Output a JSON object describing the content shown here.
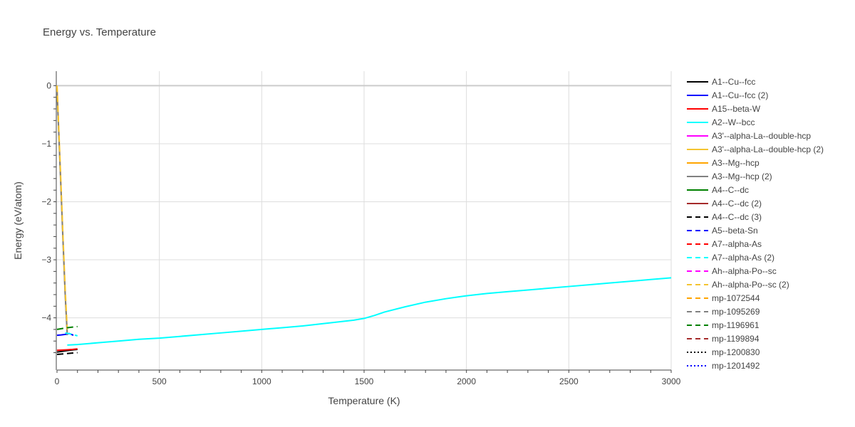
{
  "chart_data": {
    "type": "line",
    "title": "Energy vs. Temperature",
    "xlabel": "Temperature (K)",
    "ylabel": "Energy (eV/atom)",
    "xlim": [
      0,
      3000
    ],
    "ylim": [
      -4.9,
      0.25
    ],
    "xticks": [
      0,
      500,
      1000,
      1500,
      2000,
      2500,
      3000
    ],
    "yticks": [
      0,
      -1,
      -2,
      -3,
      -4
    ],
    "ytick_labels": [
      "0",
      "−1",
      "−2",
      "−3",
      "−4"
    ],
    "grid": true,
    "legend_position": "right",
    "series": [
      {
        "name": "A1--Cu--fcc",
        "color": "#000000",
        "dash": "solid",
        "x": [
          0,
          10,
          30,
          50,
          70,
          100
        ],
        "y": [
          -4.59,
          -4.585,
          -4.575,
          -4.565,
          -4.555,
          -4.545
        ]
      },
      {
        "name": "A1--Cu--fcc (2)",
        "color": "#0000ff",
        "dash": "solid",
        "x": [
          0,
          20,
          40,
          60,
          80
        ],
        "y": [
          -4.3,
          -4.295,
          -4.285,
          -4.27,
          -4.3
        ]
      },
      {
        "name": "A15--beta-W",
        "color": "#ff0000",
        "dash": "solid",
        "x": [
          0,
          25,
          50,
          75,
          100
        ],
        "y": [
          -4.56,
          -4.555,
          -4.55,
          -4.545,
          -4.535
        ]
      },
      {
        "name": "A2--W--bcc",
        "color": "#00ffff",
        "dash": "solid",
        "x": [
          50,
          100,
          200,
          300,
          400,
          500,
          600,
          700,
          800,
          900,
          1000,
          1100,
          1200,
          1300,
          1400,
          1450,
          1500,
          1550,
          1600,
          1700,
          1800,
          1900,
          2000,
          2100,
          2200,
          2300,
          2400,
          2500,
          2600,
          2700,
          2800,
          2900,
          3000
        ],
        "y": [
          -4.47,
          -4.46,
          -4.43,
          -4.4,
          -4.37,
          -4.35,
          -4.32,
          -4.29,
          -4.26,
          -4.23,
          -4.2,
          -4.17,
          -4.14,
          -4.1,
          -4.06,
          -4.04,
          -4.01,
          -3.96,
          -3.9,
          -3.81,
          -3.73,
          -3.67,
          -3.62,
          -3.58,
          -3.55,
          -3.52,
          -3.49,
          -3.46,
          -3.43,
          -3.4,
          -3.37,
          -3.34,
          -3.31
        ]
      },
      {
        "name": "A3'--alpha-La--double-hcp",
        "color": "#ff00ff",
        "dash": "solid",
        "x": [],
        "y": []
      },
      {
        "name": "A3'--alpha-La--double-hcp (2)",
        "color": "#f4c430",
        "dash": "solid",
        "x": [],
        "y": []
      },
      {
        "name": "A3--Mg--hcp",
        "color": "#ffa500",
        "dash": "solid",
        "x": [
          0,
          10,
          20,
          30,
          40,
          50
        ],
        "y": [
          0.0,
          -0.9,
          -1.8,
          -2.7,
          -3.6,
          -4.25
        ]
      },
      {
        "name": "A3--Mg--hcp (2)",
        "color": "#808080",
        "dash": "solid",
        "x": [
          0,
          10,
          20,
          30,
          40,
          50
        ],
        "y": [
          -0.1,
          -0.95,
          -1.85,
          -2.75,
          -3.6,
          -4.3
        ]
      },
      {
        "name": "A4--C--dc",
        "color": "#008000",
        "dash": "solid",
        "x": [],
        "y": []
      },
      {
        "name": "A4--C--dc (2)",
        "color": "#a52a2a",
        "dash": "solid",
        "x": [],
        "y": []
      },
      {
        "name": "A4--C--dc (3)",
        "color": "#000000",
        "dash": "dash",
        "x": [
          0,
          50,
          100
        ],
        "y": [
          -4.63,
          -4.615,
          -4.6
        ]
      },
      {
        "name": "A5--beta-Sn",
        "color": "#0000ff",
        "dash": "dash",
        "x": [],
        "y": []
      },
      {
        "name": "A7--alpha-As",
        "color": "#ff0000",
        "dash": "dash",
        "x": [],
        "y": []
      },
      {
        "name": "A7--alpha-As (2)",
        "color": "#00ffff",
        "dash": "dash",
        "x": [
          40,
          70,
          100
        ],
        "y": [
          -4.26,
          -4.28,
          -4.31
        ]
      },
      {
        "name": "Ah--alpha-Po--sc",
        "color": "#ff00ff",
        "dash": "dash",
        "x": [],
        "y": []
      },
      {
        "name": "Ah--alpha-Po--sc (2)",
        "color": "#f4c430",
        "dash": "dash",
        "x": [
          0,
          10,
          20,
          30,
          40,
          50
        ],
        "y": [
          0.0,
          -0.85,
          -1.75,
          -2.65,
          -3.5,
          -4.2
        ]
      },
      {
        "name": "mp-1072544",
        "color": "#ffa500",
        "dash": "dash",
        "x": [],
        "y": []
      },
      {
        "name": "mp-1095269",
        "color": "#808080",
        "dash": "dash",
        "x": [],
        "y": []
      },
      {
        "name": "mp-1196961",
        "color": "#008000",
        "dash": "dash",
        "x": [
          0,
          50,
          100
        ],
        "y": [
          -4.2,
          -4.17,
          -4.15
        ]
      },
      {
        "name": "mp-1199894",
        "color": "#a52a2a",
        "dash": "dash",
        "x": [],
        "y": []
      },
      {
        "name": "mp-1200830",
        "color": "#000000",
        "dash": "dot",
        "x": [],
        "y": []
      },
      {
        "name": "mp-1201492",
        "color": "#0000ff",
        "dash": "dot",
        "x": [],
        "y": []
      }
    ]
  }
}
